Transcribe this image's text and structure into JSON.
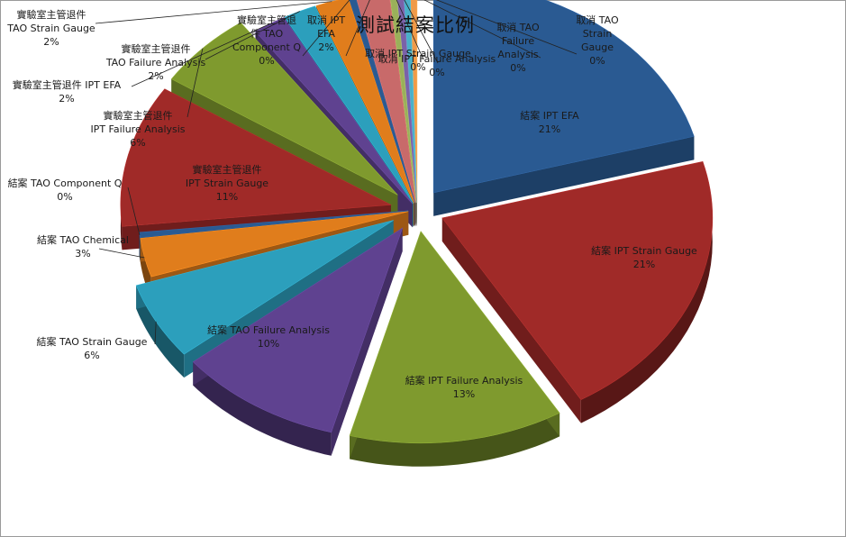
{
  "chart_data": {
    "type": "pie",
    "title": "測試結案比例",
    "style": "3d-exploded",
    "grid": false,
    "legend": "none",
    "slices": [
      {
        "label": "結案 IPT EFA",
        "value": 21,
        "percent_label": "21%",
        "color": "#2a5a92"
      },
      {
        "label": "結案 IPT Strain Gauge",
        "value": 21,
        "percent_label": "21%",
        "color": "#a02a28"
      },
      {
        "label": "結案 IPT Failure Analysis",
        "value": 13,
        "percent_label": "13%",
        "color": "#7f9a2e"
      },
      {
        "label": "結案 TAO Failure Analysis",
        "value": 10,
        "percent_label": "10%",
        "color": "#5f4290"
      },
      {
        "label": "結案 TAO Strain Gauge",
        "value": 6,
        "percent_label": "6%",
        "color": "#2c9fbc"
      },
      {
        "label": "結案 TAO Chemical",
        "value": 3,
        "percent_label": "3%",
        "color": "#e07d1c"
      },
      {
        "label": "結案 TAO Component Q",
        "value": 0.4,
        "percent_label": "0%",
        "color": "#2a5a92"
      },
      {
        "label": "實驗室主管退件 IPT Strain Gauge",
        "value": 11,
        "percent_label": "11%",
        "color": "#a02a28"
      },
      {
        "label": "實驗室主管退件 IPT Failure Analysis",
        "value": 6,
        "percent_label": "6%",
        "color": "#7f9a2e"
      },
      {
        "label": "實驗室主管退件 IPT EFA",
        "value": 2,
        "percent_label": "2%",
        "color": "#5f4290"
      },
      {
        "label": "實驗室主管退件 TAO Failure Analysis",
        "value": 2,
        "percent_label": "2%",
        "color": "#2c9fbc"
      },
      {
        "label": "實驗室主管退件 TAO Strain Gauge",
        "value": 2,
        "percent_label": "2%",
        "color": "#e07d1c"
      },
      {
        "label": "實驗室主管退件 TAO Component Q",
        "value": 0.4,
        "percent_label": "0%",
        "color": "#2a5a92"
      },
      {
        "label": "取消 IPT EFA",
        "value": 2,
        "percent_label": "2%",
        "color": "#c86a6a"
      },
      {
        "label": "取消 IPT Strain Gauge",
        "value": 0.4,
        "percent_label": "0%",
        "color": "#9ab05a"
      },
      {
        "label": "取消 IPT Failure Analysis",
        "value": 0.4,
        "percent_label": "0%",
        "color": "#7a62a8"
      },
      {
        "label": "取消 TAO Failure Analysis",
        "value": 0.4,
        "percent_label": "0%",
        "color": "#4ab0c8"
      },
      {
        "label": "取消 TAO Strain Gauge",
        "value": 0.4,
        "percent_label": "0%",
        "color": "#f09a48"
      }
    ]
  },
  "labels": [
    {
      "text": "結案 IPT EFA\n21%"
    },
    {
      "text": "結案 IPT Strain Gauge\n21%"
    },
    {
      "text": "結案 IPT Failure Analysis\n13%"
    },
    {
      "text": "結案 TAO Failure Analysis\n10%"
    },
    {
      "text": "結案 TAO Strain Gauge\n6%"
    },
    {
      "text": "結案 TAO Chemical\n3%"
    },
    {
      "text": "結案 TAO Component Q\n0%"
    },
    {
      "text": "實驗室主管退件\nIPT Strain Gauge\n11%"
    },
    {
      "text": "實驗室主管退件\nIPT Failure Analysis\n6%"
    },
    {
      "text": "實驗室主管退件 IPT EFA\n2%"
    },
    {
      "text": "實驗室主管退件\nTAO Failure Analysis\n2%"
    },
    {
      "text": "實驗室主管退件\nTAO Strain Gauge\n2%"
    },
    {
      "text": "實驗室主管退\n件 TAO\nComponent Q\n0%"
    },
    {
      "text": "取消 IPT\nEFA\n2%"
    },
    {
      "text": "取消 IPT Strain Gauge\n0%"
    },
    {
      "text": "取消 IPT Failure Analysis\n0%"
    },
    {
      "text": "取消 TAO\nFailure\nAnalysis\n0%"
    },
    {
      "text": "取消 TAO\nStrain\nGauge\n0%"
    }
  ]
}
